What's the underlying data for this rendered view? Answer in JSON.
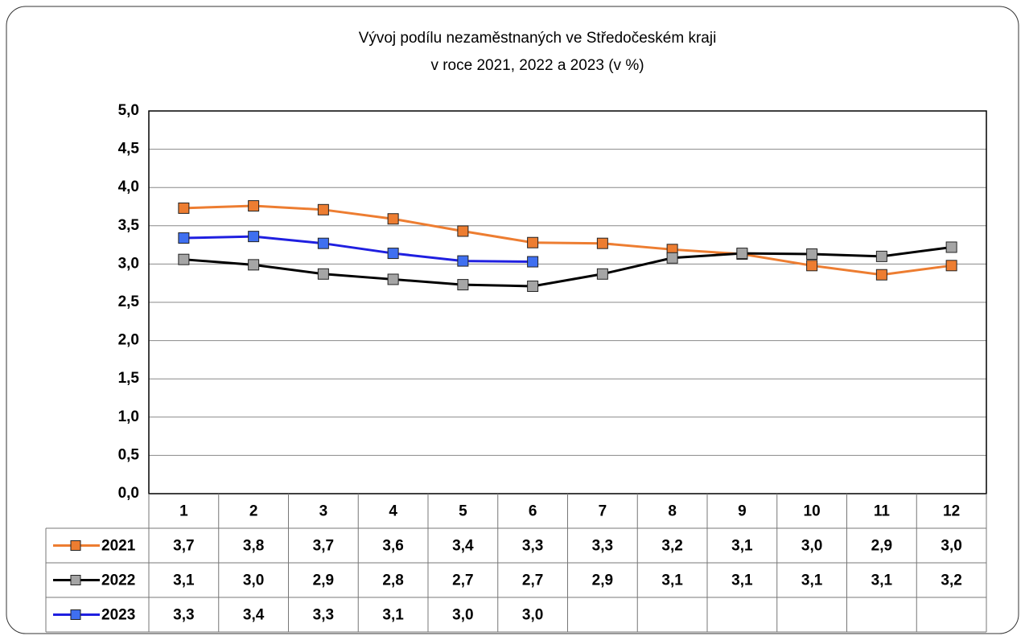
{
  "chart_data": {
    "type": "line",
    "title": [
      "Vývoj podílu nezaměstnaných ve Středočeském kraji",
      "v roce 2021, 2022 a 2023 (v %)"
    ],
    "categories": [
      "1",
      "2",
      "3",
      "4",
      "5",
      "6",
      "7",
      "8",
      "9",
      "10",
      "11",
      "12"
    ],
    "ylim": [
      0,
      5
    ],
    "yticks": [
      {
        "value": 0,
        "label": "0,0"
      },
      {
        "value": 0.5,
        "label": "0,5"
      },
      {
        "value": 1,
        "label": "1,0"
      },
      {
        "value": 1.5,
        "label": "1,5"
      },
      {
        "value": 2,
        "label": "2,0"
      },
      {
        "value": 2.5,
        "label": "2,5"
      },
      {
        "value": 3,
        "label": "3,0"
      },
      {
        "value": 3.5,
        "label": "3,5"
      },
      {
        "value": 4,
        "label": "4,0"
      },
      {
        "value": 4.5,
        "label": "4,5"
      },
      {
        "value": 5,
        "label": "5,0"
      }
    ],
    "grid": true,
    "series": [
      {
        "name": "2021",
        "color": "#ED7D31",
        "marker_color": "#ED7D31",
        "values": [
          3.73,
          3.76,
          3.71,
          3.59,
          3.43,
          3.28,
          3.27,
          3.19,
          3.13,
          2.98,
          2.86,
          2.98
        ],
        "value_labels": [
          "3,7",
          "3,8",
          "3,7",
          "3,6",
          "3,4",
          "3,3",
          "3,3",
          "3,2",
          "3,1",
          "3,0",
          "2,9",
          "3,0"
        ]
      },
      {
        "name": "2022",
        "color": "#000000",
        "marker_color": "#A5A5A5",
        "values": [
          3.06,
          2.99,
          2.87,
          2.8,
          2.73,
          2.71,
          2.87,
          3.08,
          3.14,
          3.13,
          3.1,
          3.22
        ],
        "value_labels": [
          "3,1",
          "3,0",
          "2,9",
          "2,8",
          "2,7",
          "2,7",
          "2,9",
          "3,1",
          "3,1",
          "3,1",
          "3,1",
          "3,2"
        ]
      },
      {
        "name": "2023",
        "color": "#1F1FE0",
        "marker_color": "#3F6FF0",
        "values": [
          3.34,
          3.36,
          3.27,
          3.14,
          3.04,
          3.03,
          null,
          null,
          null,
          null,
          null,
          null
        ],
        "value_labels": [
          "3,3",
          "3,4",
          "3,3",
          "3,1",
          "3,0",
          "3,0",
          null,
          null,
          null,
          null,
          null,
          null
        ]
      }
    ]
  }
}
